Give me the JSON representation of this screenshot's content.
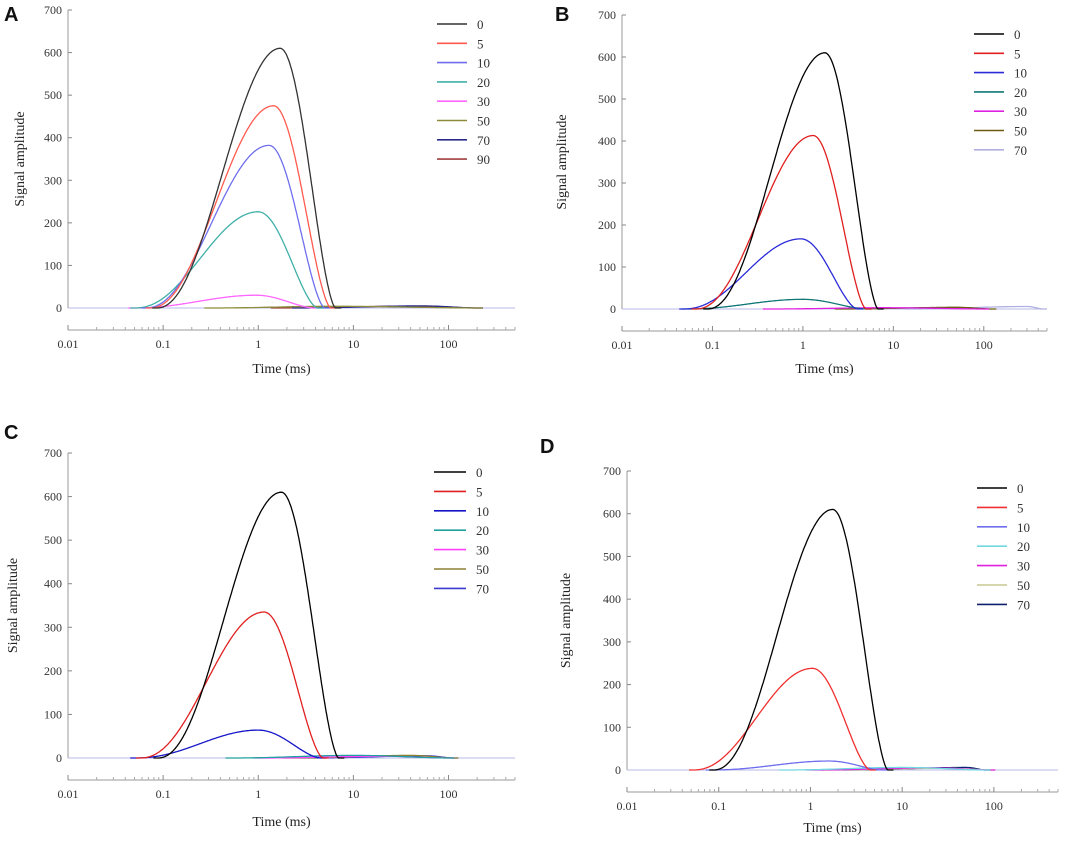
{
  "chart_data": [
    {
      "panel": "A",
      "type": "line",
      "title": "",
      "xlabel": "Time (ms)",
      "ylabel": "Signal amplitude",
      "xscale": "log",
      "xlim": [
        0.01,
        500
      ],
      "ylim": [
        0,
        700
      ],
      "xticks": [
        0.01,
        0.1,
        1,
        10,
        100
      ],
      "xtick_labels": [
        "0.01",
        "0.1",
        "1",
        "10",
        "100"
      ],
      "yticks": [
        0,
        100,
        200,
        300,
        400,
        500,
        600,
        700
      ],
      "ytick_labels": [
        "0",
        "100",
        "200",
        "300",
        "400",
        "500",
        "600",
        "700"
      ],
      "legend_position": "top-right",
      "series": [
        {
          "name": "0",
          "color": "#333333",
          "peak": 610,
          "peak_t": 1.7,
          "end_t": 6.5
        },
        {
          "name": "5",
          "color": "#ff5a4f",
          "peak": 475,
          "peak_t": 1.45,
          "end_t": 5.8
        },
        {
          "name": "10",
          "color": "#6f6fee",
          "peak": 382,
          "peak_t": 1.3,
          "end_t": 5.0
        },
        {
          "name": "20",
          "color": "#3fb0a8",
          "peak": 226,
          "peak_t": 1.0,
          "end_t": 4.2
        },
        {
          "name": "30",
          "color": "#ff66ff",
          "peak": 30,
          "peak_t": 0.95,
          "end_t": 3.8
        },
        {
          "name": "50",
          "color": "#8c8c3a",
          "peak": 4,
          "peak_t": 6.0,
          "end_t": 200
        },
        {
          "name": "70",
          "color": "#2a2a8a",
          "peak": 5,
          "peak_t": 50,
          "end_t": 200
        },
        {
          "name": "90",
          "color": "#a04040",
          "peak": 4,
          "peak_t": 30,
          "end_t": 200
        }
      ]
    },
    {
      "panel": "B",
      "type": "line",
      "title": "",
      "xlabel": "Time (ms)",
      "ylabel": "Signal amplitude",
      "xscale": "log",
      "xlim": [
        0.01,
        500
      ],
      "ylim": [
        0,
        700
      ],
      "xticks": [
        0.01,
        0.1,
        1,
        10,
        100
      ],
      "xtick_labels": [
        "0.01",
        "0.1",
        "1",
        "10",
        "100"
      ],
      "yticks": [
        0,
        100,
        200,
        300,
        400,
        500,
        600,
        700
      ],
      "ytick_labels": [
        "0",
        "100",
        "200",
        "300",
        "400",
        "500",
        "600",
        "700"
      ],
      "legend_position": "top-right",
      "series": [
        {
          "name": "0",
          "color": "#000000",
          "peak": 610,
          "peak_t": 1.75,
          "end_t": 6.8
        },
        {
          "name": "5",
          "color": "#e02020",
          "peak": 413,
          "peak_t": 1.3,
          "end_t": 5.0
        },
        {
          "name": "10",
          "color": "#2b2bd8",
          "peak": 167,
          "peak_t": 0.95,
          "end_t": 4.0
        },
        {
          "name": "20",
          "color": "#117777",
          "peak": 23,
          "peak_t": 1.0,
          "end_t": 5.0
        },
        {
          "name": "30",
          "color": "#e020e0",
          "peak": 3,
          "peak_t": 8.0,
          "end_t": 100
        },
        {
          "name": "50",
          "color": "#6b5a10",
          "peak": 4,
          "peak_t": 50,
          "end_t": 120
        },
        {
          "name": "70",
          "color": "#b0b0e0",
          "peak": 6,
          "peak_t": 300,
          "end_t": 450
        }
      ]
    },
    {
      "panel": "C",
      "type": "line",
      "title": "",
      "xlabel": "Time (ms)",
      "ylabel": "Signal amplitude",
      "xscale": "log",
      "xlim": [
        0.01,
        500
      ],
      "ylim": [
        0,
        700
      ],
      "xticks": [
        0.01,
        0.1,
        1,
        10,
        100
      ],
      "xtick_labels": [
        "0.01",
        "0.1",
        "1",
        "10",
        "100"
      ],
      "yticks": [
        0,
        100,
        200,
        300,
        400,
        500,
        600,
        700
      ],
      "ytick_labels": [
        "0",
        "100",
        "200",
        "300",
        "400",
        "500",
        "600",
        "700"
      ],
      "legend_position": "top-right",
      "series": [
        {
          "name": "0",
          "color": "#000000",
          "peak": 610,
          "peak_t": 1.75,
          "end_t": 7.0
        },
        {
          "name": "5",
          "color": "#e02020",
          "peak": 335,
          "peak_t": 1.15,
          "end_t": 4.8
        },
        {
          "name": "10",
          "color": "#1515c8",
          "peak": 64,
          "peak_t": 1.0,
          "end_t": 4.5
        },
        {
          "name": "20",
          "color": "#20a0a0",
          "peak": 6,
          "peak_t": 10,
          "end_t": 100
        },
        {
          "name": "30",
          "color": "#ff40ff",
          "peak": 4,
          "peak_t": 20,
          "end_t": 100
        },
        {
          "name": "50",
          "color": "#8c8030",
          "peak": 6,
          "peak_t": 40,
          "end_t": 110
        },
        {
          "name": "70",
          "color": "#3a3ad0",
          "peak": 5,
          "peak_t": 60,
          "end_t": 110
        }
      ]
    },
    {
      "panel": "D",
      "type": "line",
      "title": "",
      "xlabel": "Time (ms)",
      "ylabel": "Signal amplitude",
      "xscale": "log",
      "xlim": [
        0.01,
        500
      ],
      "ylim": [
        0,
        700
      ],
      "xticks": [
        0.01,
        0.1,
        1,
        10,
        100
      ],
      "xtick_labels": [
        "0.01",
        "0.1",
        "1",
        "10",
        "100"
      ],
      "yticks": [
        0,
        100,
        200,
        300,
        400,
        500,
        600,
        700
      ],
      "ytick_labels": [
        "0",
        "100",
        "200",
        "300",
        "400",
        "500",
        "600",
        "700"
      ],
      "legend_position": "top-right",
      "series": [
        {
          "name": "0",
          "color": "#000000",
          "peak": 610,
          "peak_t": 1.75,
          "end_t": 7.0
        },
        {
          "name": "5",
          "color": "#f03030",
          "peak": 238,
          "peak_t": 1.05,
          "end_t": 4.5
        },
        {
          "name": "10",
          "color": "#6f6fee",
          "peak": 21,
          "peak_t": 1.6,
          "end_t": 6.0
        },
        {
          "name": "20",
          "color": "#70d8e0",
          "peak": 6,
          "peak_t": 10,
          "end_t": 80
        },
        {
          "name": "30",
          "color": "#e020e0",
          "peak": 5,
          "peak_t": 20,
          "end_t": 90
        },
        {
          "name": "50",
          "color": "#c8c890",
          "peak": 4,
          "peak_t": 30,
          "end_t": 90
        },
        {
          "name": "70",
          "color": "#102070",
          "peak": 6,
          "peak_t": 50,
          "end_t": 80
        }
      ]
    }
  ]
}
